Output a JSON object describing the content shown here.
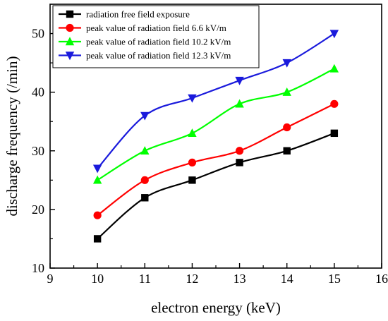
{
  "chart_data": {
    "type": "line",
    "title": "",
    "xlabel": "electron energy (keV)",
    "ylabel": "discharge frequency (/min)",
    "xlim": [
      9,
      16
    ],
    "ylim": [
      10,
      55
    ],
    "xticks": [
      "9",
      "10",
      "11",
      "12",
      "13",
      "14",
      "15",
      "16"
    ],
    "yticks": [
      "10",
      "20",
      "30",
      "40",
      "50"
    ],
    "x": [
      10,
      11,
      12,
      13,
      14,
      15
    ],
    "grid": false,
    "legend_position": "top-left",
    "series": [
      {
        "name": "radiation free field exposure",
        "color": "#000000",
        "marker": "square",
        "values": [
          15,
          22,
          25,
          28,
          30,
          33
        ]
      },
      {
        "name": "peak value of radiation field 6.6 kV/m",
        "color": "#ff0000",
        "marker": "circle",
        "values": [
          19,
          25,
          28,
          30,
          34,
          38
        ]
      },
      {
        "name": "peak value of radiation field 10.2 kV/m",
        "color": "#00ff00",
        "marker": "triangle-up",
        "values": [
          25,
          30,
          33,
          38,
          40,
          44
        ]
      },
      {
        "name": "peak value of radiation field 12.3 kV/m",
        "color": "#1a1adc",
        "marker": "triangle-down",
        "values": [
          27,
          36,
          39,
          42,
          45,
          50
        ]
      }
    ]
  }
}
